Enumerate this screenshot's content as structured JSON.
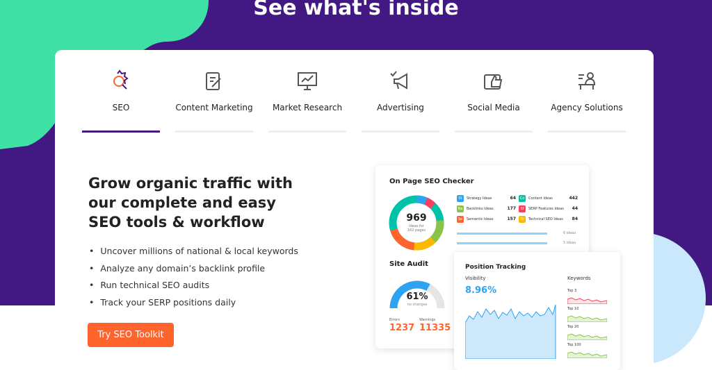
{
  "header": {
    "title": "See what's inside"
  },
  "tabs": [
    "SEO",
    "Content Marketing",
    "Market Research",
    "Advertising",
    "Social Media",
    "Agency Solutions"
  ],
  "hero": {
    "heading": "Grow organic traffic with our complete and easy SEO tools & workflow",
    "bullets": [
      "Uncover millions of national & local keywords",
      "Analyze any domain’s backlink profile",
      "Run technical SEO audits",
      "Track your SERP positions daily"
    ],
    "button": "Try SEO Toolkit"
  },
  "seo_checker": {
    "title": "On Page SEO Checker",
    "total": 969,
    "total_caption": "ideas for 162 pages",
    "ideas": [
      {
        "badge": "St",
        "label": "Strategy Ideas",
        "count": 64
      },
      {
        "badge": "Co",
        "label": "Content Ideas",
        "count": 442
      },
      {
        "badge": "Ba",
        "label": "Backlinks Ideas",
        "count": 177
      },
      {
        "badge": "Sf",
        "label": "SERP Features Ideas",
        "count": 44
      },
      {
        "badge": "Se",
        "label": "Semantic Ideas",
        "count": 157
      },
      {
        "badge": "Te",
        "label": "Technical SEO Ideas",
        "count": 84
      }
    ],
    "rows": [
      "6 ideas",
      "5 ideas"
    ]
  },
  "site_audit": {
    "title": "Site Audit",
    "score": "61%",
    "score_caption": "no changes",
    "errors_label": "Errors",
    "errors": 1237,
    "warnings_label": "Warnings",
    "warnings": 11335
  },
  "position_tracking": {
    "title": "Position Tracking",
    "visibility_label": "Visibility",
    "visibility": "8.96%",
    "keywords_label": "Keywords",
    "keyword_groups": [
      "Top 3",
      "Top 10",
      "Top 20",
      "Top 100"
    ]
  }
}
